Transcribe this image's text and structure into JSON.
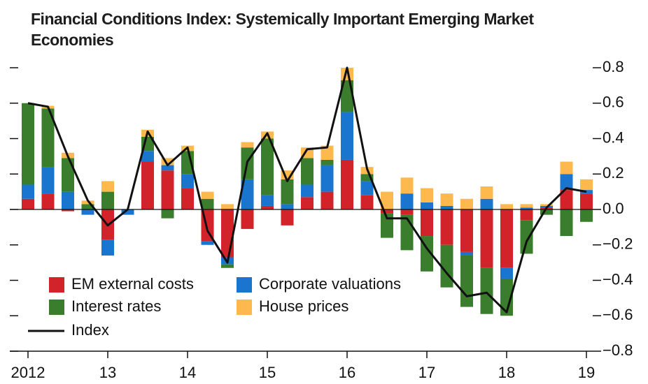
{
  "chart_data": {
    "type": "stacked_bar_line",
    "title": "Financial Conditions Index: Systemically Important Emerging Market Economies",
    "categories": [
      "2012",
      null,
      null,
      null,
      "13",
      null,
      null,
      null,
      "14",
      null,
      null,
      null,
      "15",
      null,
      null,
      null,
      "16",
      null,
      null,
      null,
      "17",
      null,
      null,
      null,
      "18",
      null,
      null,
      null,
      "19"
    ],
    "series": [
      {
        "name": "EM external costs",
        "color": "#d2232a",
        "values": [
          0.06,
          0.09,
          -0.01,
          0,
          -0.17,
          0,
          0.27,
          0.22,
          0.12,
          -0.18,
          -0.27,
          -0.11,
          0.02,
          -0.09,
          0.07,
          0.1,
          0.28,
          0.08,
          -0.02,
          -0.03,
          -0.15,
          -0.2,
          -0.24,
          -0.33,
          -0.33,
          -0.06,
          0.01,
          0.11,
          0.09
        ]
      },
      {
        "name": "Corporate valuations",
        "color": "#1a75cf",
        "values": [
          0.08,
          0.15,
          0.1,
          -0.03,
          -0.09,
          -0.03,
          0.06,
          0.03,
          0.08,
          -0.02,
          -0.04,
          0.17,
          0.06,
          0.03,
          0.07,
          0.15,
          0.27,
          0.08,
          0,
          0.09,
          0.04,
          0.02,
          -0.02,
          0.06,
          -0.06,
          0.01,
          0.01,
          0.09,
          0.02
        ]
      },
      {
        "name": "Interest rates",
        "color": "#3a7d2c",
        "values": [
          0.46,
          0.33,
          0.19,
          0.03,
          0.1,
          0,
          0.08,
          -0.05,
          0.13,
          0.06,
          -0.02,
          0.18,
          0.32,
          0.14,
          0.15,
          0.03,
          0.18,
          0.04,
          -0.14,
          -0.2,
          -0.2,
          -0.24,
          -0.29,
          -0.26,
          -0.21,
          -0.19,
          -0.03,
          -0.15,
          -0.07
        ]
      },
      {
        "name": "House prices",
        "color": "#fdb94e",
        "values": [
          0,
          0.015,
          0.03,
          0.02,
          0.06,
          0,
          0.04,
          0.04,
          0.03,
          0.04,
          0.03,
          0.03,
          0.04,
          0.05,
          0.06,
          0.08,
          0.07,
          0.04,
          0.1,
          0.09,
          0.08,
          0.07,
          0.06,
          0.07,
          0.03,
          0.02,
          0.01,
          0.07,
          0.06
        ]
      }
    ],
    "line": {
      "name": "Index",
      "color": "#111111",
      "values": [
        0.6,
        0.58,
        0.3,
        0.05,
        -0.09,
        0.0,
        0.44,
        0.25,
        0.35,
        -0.12,
        -0.3,
        0.27,
        0.43,
        0.16,
        0.34,
        0.35,
        0.8,
        0.23,
        -0.05,
        -0.05,
        -0.22,
        -0.36,
        -0.49,
        -0.47,
        -0.58,
        -0.18,
        0.01,
        0.12,
        0.1
      ]
    },
    "ylim": [
      -0.8,
      0.8
    ],
    "yticks": [
      {
        "value": -0.8,
        "label": "−0.8"
      },
      {
        "value": -0.6,
        "label": "−0.6"
      },
      {
        "value": -0.4,
        "label": "−0.4"
      },
      {
        "value": -0.2,
        "label": "−0.2"
      },
      {
        "value": 0,
        "label": "0.0"
      },
      0.2,
      0.4,
      0.6,
      0.8
    ]
  }
}
